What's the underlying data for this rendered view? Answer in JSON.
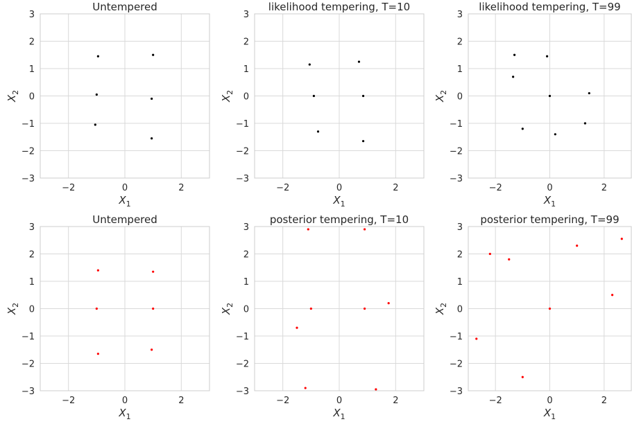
{
  "chart_data": [
    {
      "type": "scatter",
      "title": "Untempered",
      "xlabel": "X_1",
      "ylabel": "X_2",
      "xlim": [
        -3,
        3
      ],
      "ylim": [
        -3,
        3
      ],
      "xticks": [
        -2,
        0,
        2
      ],
      "yticks": [
        -3,
        -2,
        -1,
        0,
        1,
        2,
        3
      ],
      "grid": true,
      "color": "#000000",
      "points": [
        [
          -1.0,
          0.05
        ],
        [
          0.95,
          -0.1
        ],
        [
          -0.95,
          1.45
        ],
        [
          1.0,
          1.5
        ],
        [
          -1.05,
          -1.05
        ],
        [
          0.95,
          -1.55
        ]
      ]
    },
    {
      "type": "scatter",
      "title": "likelihood tempering, T=10",
      "xlabel": "X_1",
      "ylabel": "X_2",
      "xlim": [
        -3,
        3
      ],
      "ylim": [
        -3,
        3
      ],
      "xticks": [
        -2,
        0,
        2
      ],
      "yticks": [
        -3,
        -2,
        -1,
        0,
        1,
        2,
        3
      ],
      "grid": true,
      "color": "#000000",
      "points": [
        [
          -0.9,
          0.0
        ],
        [
          0.85,
          0.0
        ],
        [
          -1.05,
          1.15
        ],
        [
          0.7,
          1.25
        ],
        [
          -0.75,
          -1.3
        ],
        [
          0.85,
          -1.65
        ]
      ]
    },
    {
      "type": "scatter",
      "title": "likelihood tempering, T=99",
      "xlabel": "X_1",
      "ylabel": "X_2",
      "xlim": [
        -3,
        3
      ],
      "ylim": [
        -3,
        3
      ],
      "xticks": [
        -2,
        0,
        2
      ],
      "yticks": [
        -3,
        -2,
        -1,
        0,
        1,
        2,
        3
      ],
      "grid": true,
      "color": "#000000",
      "points": [
        [
          -1.3,
          1.5
        ],
        [
          -0.1,
          1.45
        ],
        [
          1.3,
          -1.0
        ],
        [
          -1.0,
          -1.2
        ],
        [
          0.2,
          -1.4
        ],
        [
          -1.35,
          0.7
        ],
        [
          1.45,
          0.1
        ],
        [
          0.0,
          0.0
        ]
      ]
    },
    {
      "type": "scatter",
      "title": "Untempered",
      "xlabel": "X_1",
      "ylabel": "X_2",
      "xlim": [
        -3,
        3
      ],
      "ylim": [
        -3,
        3
      ],
      "xticks": [
        -2,
        0,
        2
      ],
      "yticks": [
        -3,
        -2,
        -1,
        0,
        1,
        2,
        3
      ],
      "grid": true,
      "color": "#ff0000",
      "points": [
        [
          -1.0,
          0.0
        ],
        [
          1.0,
          0.0
        ],
        [
          -0.95,
          1.4
        ],
        [
          1.0,
          1.35
        ],
        [
          -0.95,
          -1.65
        ],
        [
          0.95,
          -1.5
        ]
      ]
    },
    {
      "type": "scatter",
      "title": "posterior tempering, T=10",
      "xlabel": "X_1",
      "ylabel": "X_2",
      "xlim": [
        -3,
        3
      ],
      "ylim": [
        -3,
        3
      ],
      "xticks": [
        -2,
        0,
        2
      ],
      "yticks": [
        -3,
        -2,
        -1,
        0,
        1,
        2,
        3
      ],
      "grid": true,
      "color": "#ff0000",
      "points": [
        [
          -1.0,
          0.0
        ],
        [
          0.9,
          0.0
        ],
        [
          -1.1,
          2.9
        ],
        [
          0.9,
          2.9
        ],
        [
          -1.2,
          -2.9
        ],
        [
          1.3,
          -2.95
        ],
        [
          1.75,
          0.2
        ],
        [
          -1.5,
          -0.7
        ]
      ]
    },
    {
      "type": "scatter",
      "title": "posterior tempering, T=99",
      "xlabel": "X_1",
      "ylabel": "X_2",
      "xlim": [
        -3,
        3
      ],
      "ylim": [
        -3,
        3
      ],
      "xticks": [
        -2,
        0,
        2
      ],
      "yticks": [
        -3,
        -2,
        -1,
        0,
        1,
        2,
        3
      ],
      "grid": true,
      "color": "#ff0000",
      "points": [
        [
          -2.7,
          -1.1
        ],
        [
          2.65,
          2.55
        ],
        [
          -1.5,
          1.8
        ],
        [
          0.0,
          0.0
        ],
        [
          -2.2,
          2.0
        ],
        [
          2.3,
          0.5
        ],
        [
          -1.0,
          -2.5
        ],
        [
          1.0,
          2.3
        ]
      ]
    }
  ]
}
